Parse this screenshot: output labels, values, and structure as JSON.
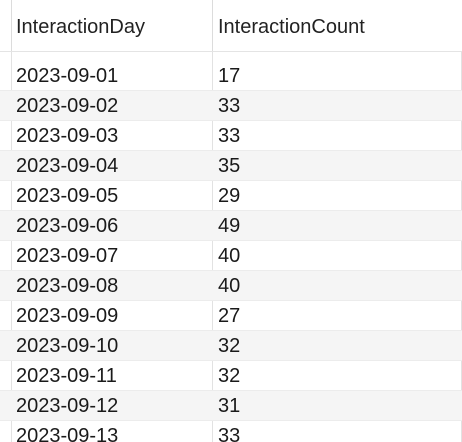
{
  "table": {
    "columns": [
      "InteractionDay",
      "InteractionCount"
    ],
    "rows": [
      [
        "2023-09-01",
        "17"
      ],
      [
        "2023-09-02",
        "33"
      ],
      [
        "2023-09-03",
        "33"
      ],
      [
        "2023-09-04",
        "35"
      ],
      [
        "2023-09-05",
        "29"
      ],
      [
        "2023-09-06",
        "49"
      ],
      [
        "2023-09-07",
        "40"
      ],
      [
        "2023-09-08",
        "40"
      ],
      [
        "2023-09-09",
        "27"
      ],
      [
        "2023-09-10",
        "32"
      ],
      [
        "2023-09-11",
        "32"
      ],
      [
        "2023-09-12",
        "31"
      ],
      [
        "2023-09-13",
        "33"
      ]
    ]
  }
}
